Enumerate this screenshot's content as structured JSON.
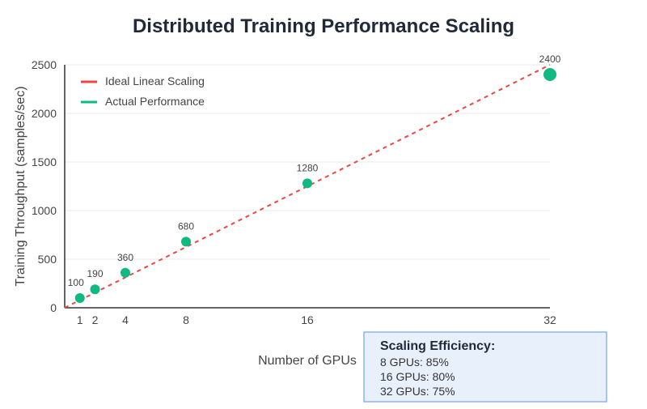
{
  "chart_data": {
    "type": "scatter",
    "title": "Distributed Training Performance Scaling",
    "xlabel": "Number of GPUs",
    "ylabel": "Training Throughput (samples/sec)",
    "xlim": [
      0,
      32
    ],
    "ylim": [
      0,
      2500
    ],
    "x_ticks": [
      1,
      2,
      4,
      8,
      16,
      32
    ],
    "y_ticks": [
      0,
      500,
      1000,
      1500,
      2000,
      2500
    ],
    "grid": true,
    "series": [
      {
        "name": "Ideal Linear Scaling",
        "style": "dashed-line",
        "color": "#ef4444",
        "x": [
          0,
          32
        ],
        "y": [
          0,
          2500
        ]
      },
      {
        "name": "Actual Performance",
        "style": "points",
        "color": "#10b981",
        "x": [
          1,
          2,
          4,
          8,
          16,
          32
        ],
        "y": [
          100,
          190,
          360,
          680,
          1280,
          2400
        ]
      }
    ],
    "data_labels": [
      "100",
      "190",
      "360",
      "680",
      "1280",
      "2400"
    ],
    "legend_position": "bottom-left",
    "annotation": {
      "title": "Scaling Efficiency:",
      "lines": [
        "8 GPUs: 85%",
        "16 GPUs: 80%",
        "32 GPUs: 75%"
      ]
    }
  }
}
